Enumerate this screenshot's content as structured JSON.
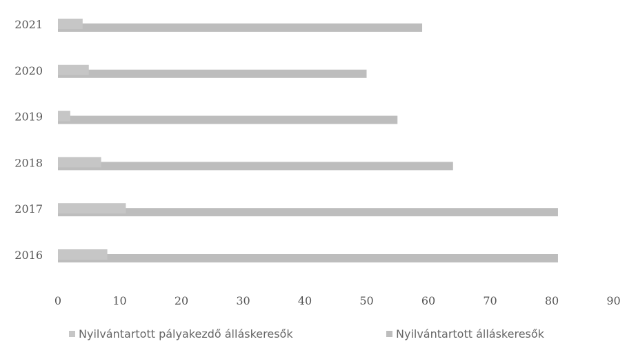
{
  "chart_data": {
    "type": "bar",
    "orientation": "horizontal",
    "categories": [
      "2021",
      "2020",
      "2019",
      "2018",
      "2017",
      "2016"
    ],
    "series": [
      {
        "name": "Nyilvántartott pályakezdő álláskeresők",
        "values": [
          4,
          5,
          2,
          7,
          11,
          8
        ],
        "color": "#c6c6c6"
      },
      {
        "name": "Nyilvántartott álláskeresők",
        "values": [
          59,
          50,
          55,
          64,
          81,
          81
        ],
        "color": "#bdbdbd"
      }
    ],
    "xlim": [
      0,
      90
    ],
    "xticks": [
      "0",
      "10",
      "20",
      "30",
      "40",
      "50",
      "60",
      "70",
      "80",
      "90"
    ],
    "grid": false,
    "legend_position": "bottom"
  }
}
